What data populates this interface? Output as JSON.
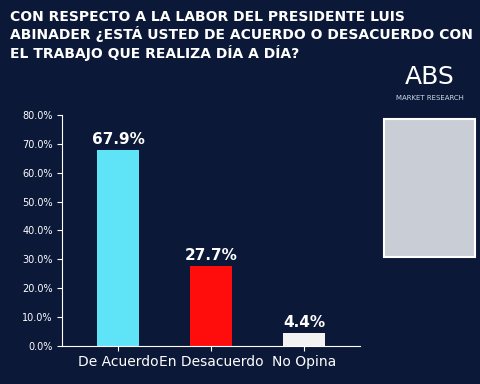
{
  "chart_data": {
    "type": "bar",
    "title": "CON RESPECTO A LA LABOR DEL PRESIDENTE LUIS ABINADER ¿ESTÁ USTED DE ACUERDO O DESACUERDO CON EL TRABAJO QUE REALIZA DÍA A DÍA?",
    "logo": {
      "text": "ABS",
      "subtitle": "MARKET RESEARCH"
    },
    "categories": [
      "De Acuerdo",
      "En Desacuerdo",
      "No Opina"
    ],
    "values": [
      67.9,
      27.7,
      4.4
    ],
    "value_labels": [
      "67.9%",
      "27.7%",
      "4.4%"
    ],
    "colors": [
      "#5fe3f7",
      "#ff0d0d",
      "#f2f2f2"
    ],
    "ylim": [
      0,
      80
    ],
    "yticks": [
      {
        "value": 0,
        "label": "0.0%"
      },
      {
        "value": 10,
        "label": "10.0%"
      },
      {
        "value": 20,
        "label": "20.0%"
      },
      {
        "value": 30,
        "label": "30.0%"
      },
      {
        "value": 40,
        "label": "40.0%"
      },
      {
        "value": 50,
        "label": "50.0%"
      },
      {
        "value": 60,
        "label": "60.0%"
      },
      {
        "value": 70,
        "label": "70.0%"
      },
      {
        "value": 80,
        "label": "80.0%"
      }
    ],
    "data_labels": true,
    "grid": false
  }
}
